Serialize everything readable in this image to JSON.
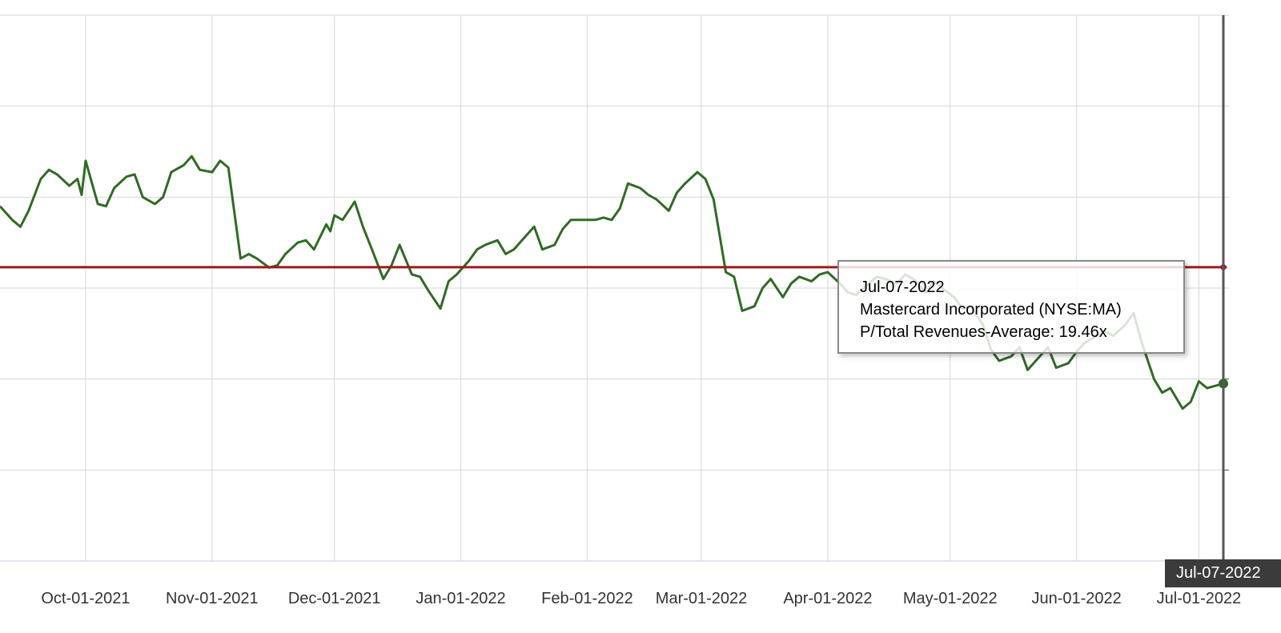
{
  "chart_data": {
    "type": "line",
    "x_tick_labels": [
      "Oct-01-2021",
      "Nov-01-2021",
      "Dec-01-2021",
      "Jan-01-2022",
      "Feb-01-2022",
      "Mar-01-2022",
      "Apr-01-2022",
      "May-01-2022",
      "Jun-01-2022",
      "Jul-01-2022"
    ],
    "x_range": [
      "Sep-10-2021",
      "Jul-07-2022"
    ],
    "y_range": [
      13,
      25
    ],
    "grid": true,
    "legend": "none",
    "series": [
      {
        "name": "Mastercard Incorporated (NYSE:MA)",
        "color": "#2f6b24",
        "points": [
          [
            "Sep-10-2021",
            20.8
          ],
          [
            "Sep-13-2021",
            20.5
          ],
          [
            "Sep-15-2021",
            20.35
          ],
          [
            "Sep-17-2021",
            20.7
          ],
          [
            "Sep-20-2021",
            21.4
          ],
          [
            "Sep-22-2021",
            21.6
          ],
          [
            "Sep-24-2021",
            21.5
          ],
          [
            "Sep-27-2021",
            21.25
          ],
          [
            "Sep-29-2021",
            21.4
          ],
          [
            "Sep-30-2021",
            21.05
          ],
          [
            "Oct-01-2021",
            21.8
          ],
          [
            "Oct-04-2021",
            20.85
          ],
          [
            "Oct-06-2021",
            20.8
          ],
          [
            "Oct-08-2021",
            21.2
          ],
          [
            "Oct-11-2021",
            21.45
          ],
          [
            "Oct-13-2021",
            21.5
          ],
          [
            "Oct-15-2021",
            21.0
          ],
          [
            "Oct-18-2021",
            20.85
          ],
          [
            "Oct-20-2021",
            21.0
          ],
          [
            "Oct-22-2021",
            21.55
          ],
          [
            "Oct-25-2021",
            21.7
          ],
          [
            "Oct-27-2021",
            21.9
          ],
          [
            "Oct-29-2021",
            21.6
          ],
          [
            "Nov-01-2021",
            21.55
          ],
          [
            "Nov-03-2021",
            21.8
          ],
          [
            "Nov-05-2021",
            21.65
          ],
          [
            "Nov-08-2021",
            19.65
          ],
          [
            "Nov-10-2021",
            19.75
          ],
          [
            "Nov-12-2021",
            19.65
          ],
          [
            "Nov-15-2021",
            19.45
          ],
          [
            "Nov-17-2021",
            19.5
          ],
          [
            "Nov-19-2021",
            19.75
          ],
          [
            "Nov-22-2021",
            20.0
          ],
          [
            "Nov-24-2021",
            20.05
          ],
          [
            "Nov-26-2021",
            19.85
          ],
          [
            "Nov-29-2021",
            20.4
          ],
          [
            "Nov-30-2021",
            20.25
          ],
          [
            "Dec-01-2021",
            20.6
          ],
          [
            "Dec-03-2021",
            20.5
          ],
          [
            "Dec-06-2021",
            20.9
          ],
          [
            "Dec-08-2021",
            20.35
          ],
          [
            "Dec-10-2021",
            19.9
          ],
          [
            "Dec-13-2021",
            19.2
          ],
          [
            "Dec-15-2021",
            19.5
          ],
          [
            "Dec-17-2021",
            19.95
          ],
          [
            "Dec-20-2021",
            19.3
          ],
          [
            "Dec-22-2021",
            19.25
          ],
          [
            "Dec-24-2021",
            18.95
          ],
          [
            "Dec-27-2021",
            18.55
          ],
          [
            "Dec-29-2021",
            19.15
          ],
          [
            "Dec-31-2021",
            19.3
          ],
          [
            "Jan-03-2022",
            19.6
          ],
          [
            "Jan-05-2022",
            19.85
          ],
          [
            "Jan-07-2022",
            19.95
          ],
          [
            "Jan-10-2022",
            20.05
          ],
          [
            "Jan-12-2022",
            19.75
          ],
          [
            "Jan-14-2022",
            19.85
          ],
          [
            "Jan-17-2022",
            20.15
          ],
          [
            "Jan-19-2022",
            20.35
          ],
          [
            "Jan-21-2022",
            19.85
          ],
          [
            "Jan-24-2022",
            19.95
          ],
          [
            "Jan-26-2022",
            20.3
          ],
          [
            "Jan-28-2022",
            20.5
          ],
          [
            "Feb-01-2022",
            20.5
          ],
          [
            "Feb-03-2022",
            20.5
          ],
          [
            "Feb-05-2022",
            20.55
          ],
          [
            "Feb-07-2022",
            20.5
          ],
          [
            "Feb-09-2022",
            20.75
          ],
          [
            "Feb-11-2022",
            21.3
          ],
          [
            "Feb-14-2022",
            21.2
          ],
          [
            "Feb-16-2022",
            21.05
          ],
          [
            "Feb-18-2022",
            20.95
          ],
          [
            "Feb-21-2022",
            20.7
          ],
          [
            "Feb-23-2022",
            21.1
          ],
          [
            "Feb-25-2022",
            21.3
          ],
          [
            "Feb-28-2022",
            21.55
          ],
          [
            "Mar-02-2022",
            21.4
          ],
          [
            "Mar-04-2022",
            20.95
          ],
          [
            "Mar-07-2022",
            19.35
          ],
          [
            "Mar-09-2022",
            19.25
          ],
          [
            "Mar-11-2022",
            18.5
          ],
          [
            "Mar-14-2022",
            18.6
          ],
          [
            "Mar-16-2022",
            19.0
          ],
          [
            "Mar-18-2022",
            19.2
          ],
          [
            "Mar-21-2022",
            18.8
          ],
          [
            "Mar-23-2022",
            19.1
          ],
          [
            "Mar-25-2022",
            19.25
          ],
          [
            "Mar-28-2022",
            19.15
          ],
          [
            "Mar-30-2022",
            19.3
          ],
          [
            "Apr-01-2022",
            19.35
          ],
          [
            "Apr-04-2022",
            19.1
          ],
          [
            "Apr-06-2022",
            18.9
          ],
          [
            "Apr-08-2022",
            18.85
          ],
          [
            "Apr-11-2022",
            19.1
          ],
          [
            "Apr-13-2022",
            19.25
          ],
          [
            "Apr-15-2022",
            19.2
          ],
          [
            "Apr-18-2022",
            19.1
          ],
          [
            "Apr-20-2022",
            19.3
          ],
          [
            "Apr-22-2022",
            19.2
          ],
          [
            "Apr-25-2022",
            18.9
          ],
          [
            "Apr-27-2022",
            19.15
          ],
          [
            "Apr-29-2022",
            19.0
          ],
          [
            "May-02-2022",
            18.8
          ],
          [
            "May-04-2022",
            18.55
          ],
          [
            "May-06-2022",
            18.6
          ],
          [
            "May-09-2022",
            18.2
          ],
          [
            "May-11-2022",
            17.65
          ],
          [
            "May-13-2022",
            17.4
          ],
          [
            "May-16-2022",
            17.5
          ],
          [
            "May-18-2022",
            17.7
          ],
          [
            "May-20-2022",
            17.2
          ],
          [
            "May-23-2022",
            17.5
          ],
          [
            "May-25-2022",
            17.7
          ],
          [
            "May-27-2022",
            17.25
          ],
          [
            "May-30-2022",
            17.35
          ],
          [
            "Jun-01-2022",
            17.6
          ],
          [
            "Jun-03-2022",
            17.8
          ],
          [
            "Jun-06-2022",
            17.95
          ],
          [
            "Jun-08-2022",
            18.05
          ],
          [
            "Jun-10-2022",
            17.95
          ],
          [
            "Jun-13-2022",
            18.2
          ],
          [
            "Jun-15-2022",
            18.45
          ],
          [
            "Jun-17-2022",
            17.8
          ],
          [
            "Jun-20-2022",
            17.0
          ],
          [
            "Jun-22-2022",
            16.7
          ],
          [
            "Jun-24-2022",
            16.8
          ],
          [
            "Jun-27-2022",
            16.35
          ],
          [
            "Jun-29-2022",
            16.5
          ],
          [
            "Jul-01-2022",
            16.95
          ],
          [
            "Jul-03-2022",
            16.8
          ],
          [
            "Jul-05-2022",
            16.85
          ],
          [
            "Jul-07-2022",
            16.9
          ]
        ]
      }
    ],
    "reference_line": {
      "label": "P/Total Revenues-Average",
      "value": 19.46,
      "color": "#9b1c1c"
    },
    "tooltip": {
      "date": "Jul-07-2022",
      "company": "Mastercard Incorporated (NYSE:MA)",
      "metric_line": "P/Total Revenues-Average: 19.46x"
    },
    "cursor_label": "Jul-07-2022"
  }
}
